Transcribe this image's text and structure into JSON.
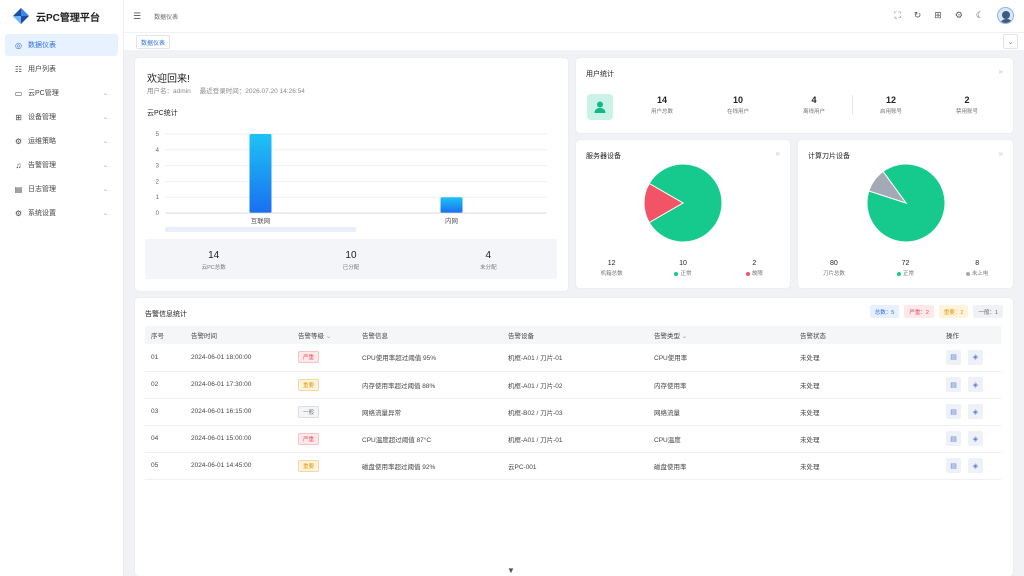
{
  "app": {
    "title": "云PC管理平台"
  },
  "sidebar": {
    "items": [
      {
        "label": "数据仪表",
        "icon": "dashboard-icon",
        "glyph": "◎",
        "active": true,
        "has_arrow": false
      },
      {
        "label": "用户列表",
        "icon": "users-icon",
        "glyph": "☷",
        "active": false,
        "has_arrow": false
      },
      {
        "label": "云PC管理",
        "icon": "monitor-icon",
        "glyph": "▭",
        "active": false,
        "has_arrow": true
      },
      {
        "label": "设备管理",
        "icon": "device-icon",
        "glyph": "⊞",
        "active": false,
        "has_arrow": true
      },
      {
        "label": "运维策略",
        "icon": "strategy-icon",
        "glyph": "⚙",
        "active": false,
        "has_arrow": true
      },
      {
        "label": "告警管理",
        "icon": "bell-icon",
        "glyph": "♫",
        "active": false,
        "has_arrow": true
      },
      {
        "label": "日志管理",
        "icon": "log-icon",
        "glyph": "▤",
        "active": false,
        "has_arrow": true
      },
      {
        "label": "系统设置",
        "icon": "settings-icon",
        "glyph": "⚙",
        "active": false,
        "has_arrow": true
      }
    ]
  },
  "header": {
    "breadcrumb": "数据仪表"
  },
  "tabs": {
    "active": "数据仪表"
  },
  "welcome": {
    "greeting": "欢迎回来!",
    "user_line": "用户名：admin     最近登录时间：2026.07.20 14:26:54"
  },
  "cloudpc": {
    "title": "云PC统计",
    "stats": [
      {
        "value": "14",
        "label": "云PC总数"
      },
      {
        "value": "10",
        "label": "已分配"
      },
      {
        "value": "4",
        "label": "未分配"
      }
    ]
  },
  "chart_data": [
    {
      "type": "bar",
      "title": "云PC统计",
      "categories": [
        "互联网",
        "内网"
      ],
      "values": [
        5,
        1
      ],
      "ylim": [
        0,
        5
      ],
      "yticks": [
        0,
        1,
        2,
        3,
        4,
        5
      ],
      "grid": true,
      "colors": [
        "#1ec3f5",
        "#1a6ff0"
      ]
    },
    {
      "type": "pie",
      "title": "服务器设备",
      "labels": [
        "正常",
        "故障"
      ],
      "values": [
        10,
        2
      ],
      "colors": [
        "#16c98d",
        "#f25366"
      ]
    },
    {
      "type": "pie",
      "title": "计算刀片设备",
      "labels": [
        "正常",
        "未上电"
      ],
      "values": [
        72,
        8
      ],
      "colors": [
        "#16c98d",
        "#a3a9b5"
      ]
    }
  ],
  "user_stats": {
    "title": "用户统计",
    "items": [
      {
        "value": "14",
        "label": "用户总数"
      },
      {
        "value": "10",
        "label": "在线用户"
      },
      {
        "value": "4",
        "label": "离线用户"
      },
      {
        "value": "12",
        "label": "启用账号"
      },
      {
        "value": "2",
        "label": "禁用账号"
      }
    ]
  },
  "server": {
    "title": "服务器设备",
    "stats": [
      {
        "value": "12",
        "label": "机箱总数",
        "dot": ""
      },
      {
        "value": "10",
        "label": "正常",
        "dot": "#16c98d"
      },
      {
        "value": "2",
        "label": "故障",
        "dot": "#f25366"
      }
    ]
  },
  "blade": {
    "title": "计算刀片设备",
    "stats": [
      {
        "value": "80",
        "label": "刀片总数",
        "dot": ""
      },
      {
        "value": "72",
        "label": "正常",
        "dot": "#16c98d"
      },
      {
        "value": "8",
        "label": "未上电",
        "dot": "#a3a9b5"
      }
    ]
  },
  "alarms": {
    "title": "告警信息统计",
    "badges": [
      {
        "label": "总数：5",
        "bg": "#e8f0fe",
        "fg": "#2b6fe0"
      },
      {
        "label": "严重：2",
        "bg": "#fde8ea",
        "fg": "#e94b5c"
      },
      {
        "label": "重要：2",
        "bg": "#fff3dc",
        "fg": "#e69a14"
      },
      {
        "label": "一般：1",
        "bg": "#f0f1f4",
        "fg": "#666666"
      }
    ],
    "columns": [
      "序号",
      "告警时间",
      "告警等级",
      "告警信息",
      "告警设备",
      "告警类型",
      "告警状态",
      "操作"
    ],
    "rows": [
      {
        "no": "01",
        "time": "2024-06-01 18:00:00",
        "level": "严重",
        "level_type": "critical",
        "info": "CPU使用率超过阈值 95%",
        "device": "机框-A01 / 刀片-01",
        "type": "CPU使用率",
        "status": "未处理"
      },
      {
        "no": "02",
        "time": "2024-06-01 17:30:00",
        "level": "重要",
        "level_type": "major",
        "info": "内存使用率超过阈值 88%",
        "device": "机框-A01 / 刀片-02",
        "type": "内存使用率",
        "status": "未处理"
      },
      {
        "no": "03",
        "time": "2024-06-01 16:15:00",
        "level": "一般",
        "level_type": "minor",
        "info": "网络流量异常",
        "device": "机框-B02 / 刀片-03",
        "type": "网络流量",
        "status": "未处理"
      },
      {
        "no": "04",
        "time": "2024-06-01 15:00:00",
        "level": "严重",
        "level_type": "critical",
        "info": "CPU温度超过阈值 87°C",
        "device": "机框-A01 / 刀片-01",
        "type": "CPU温度",
        "status": "未处理"
      },
      {
        "no": "05",
        "time": "2024-06-01 14:45:00",
        "level": "重要",
        "level_type": "major",
        "info": "磁盘使用率超过阈值 92%",
        "device": "云PC-001",
        "type": "磁盘使用率",
        "status": "未处理"
      }
    ]
  },
  "colors": {
    "accent": "#2b6fe0",
    "critical": "#e94b5c",
    "major": "#e69a14",
    "minor": "#888888"
  }
}
